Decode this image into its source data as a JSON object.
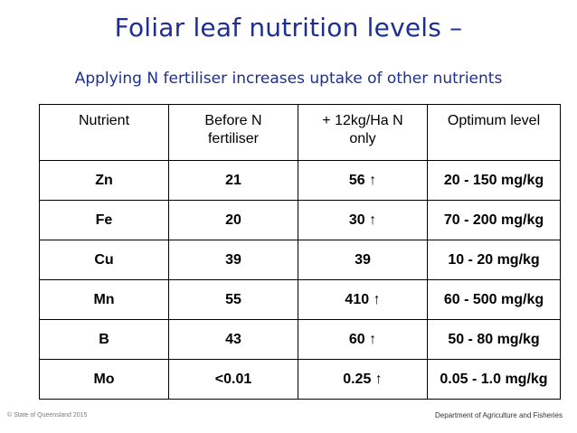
{
  "title": "Foliar leaf nutrition levels –",
  "subtitle": "Applying  N fertiliser increases uptake of other nutrients",
  "table": {
    "headers": [
      [
        "Nutrient"
      ],
      [
        "Before N",
        "fertiliser"
      ],
      [
        "+ 12kg/Ha N",
        "only"
      ],
      [
        "Optimum level"
      ]
    ],
    "rows": [
      {
        "nutrient": "Zn",
        "before": "21",
        "after": "56",
        "arrow": "↑",
        "optimum": "20 - 150 mg/kg"
      },
      {
        "nutrient": "Fe",
        "before": "20",
        "after": "30",
        "arrow": "↑",
        "optimum": "70 - 200 mg/kg"
      },
      {
        "nutrient": "Cu",
        "before": "39",
        "after": "39",
        "arrow": "",
        "optimum": "10 - 20 mg/kg"
      },
      {
        "nutrient": "Mn",
        "before": "55",
        "after": "410",
        "arrow": "↑",
        "optimum": "60 - 500 mg/kg"
      },
      {
        "nutrient": "B",
        "before": "43",
        "after": "60",
        "arrow": "↑",
        "optimum": "50 - 80 mg/kg"
      },
      {
        "nutrient": "Mo",
        "before": "<0.01",
        "after": "0.25",
        "arrow": "↑",
        "optimum": "0.05 - 1.0 mg/kg"
      }
    ]
  },
  "footer": {
    "left": "© State of Queensland 2015",
    "right": "Department of Agriculture and Fisheries"
  }
}
